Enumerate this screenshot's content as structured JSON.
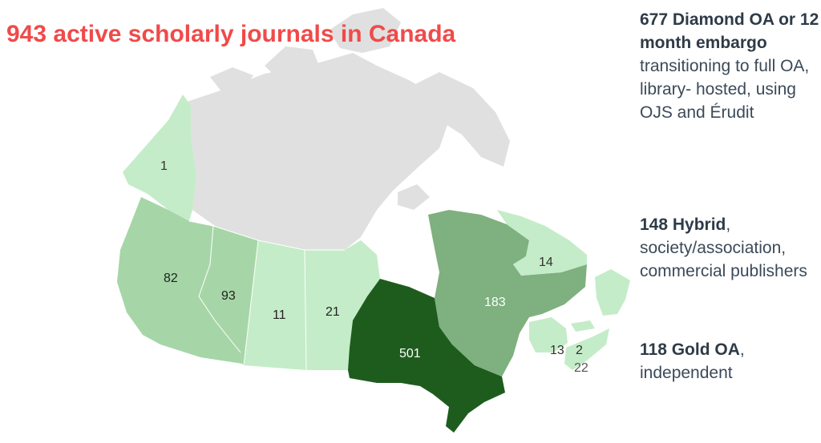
{
  "title": "943 active scholarly journals in Canada",
  "colors": {
    "title": "#f04a4a",
    "no_data": "#e0e0e0",
    "lightest": "#c4ecc8",
    "light": "#a6d6a7",
    "medium": "#7fb07f",
    "darkest": "#1e5c1e"
  },
  "regions": [
    {
      "name": "Yukon",
      "count": "1"
    },
    {
      "name": "British Columbia",
      "count": "82"
    },
    {
      "name": "Alberta",
      "count": "93"
    },
    {
      "name": "Saskatchewan",
      "count": "11"
    },
    {
      "name": "Manitoba",
      "count": "21"
    },
    {
      "name": "Ontario",
      "count": "501"
    },
    {
      "name": "Quebec",
      "count": "183"
    },
    {
      "name": "Newfoundland and Labrador",
      "count": "14"
    },
    {
      "name": "New Brunswick",
      "count": "13"
    },
    {
      "name": "Prince Edward Island",
      "count": "2"
    },
    {
      "name": "Nova Scotia",
      "count": "22"
    }
  ],
  "notes": [
    {
      "bold": "677 Diamond OA or 12 month embargo",
      "rest": "transitioning to full OA, library- hosted, using OJS and Érudit"
    },
    {
      "bold": "148 Hybrid",
      "rest": ", society/association, commercial publishers"
    },
    {
      "bold": "118 Gold OA",
      "rest": ", independent"
    }
  ]
}
